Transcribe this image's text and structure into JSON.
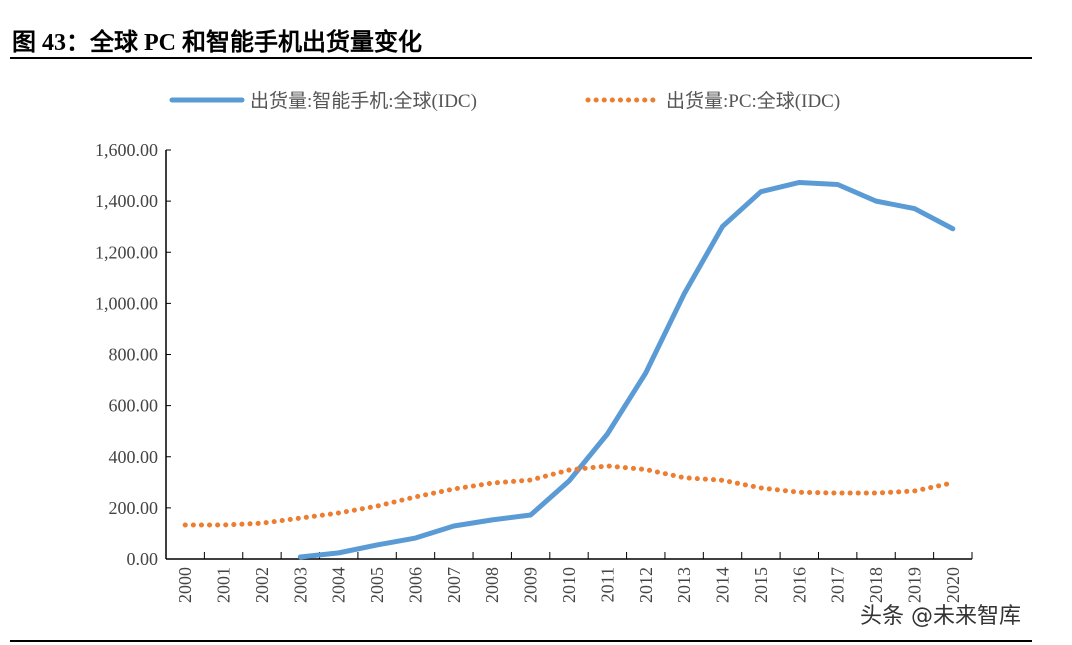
{
  "title": "图 43：全球 PC 和智能手机出货量变化",
  "watermark": "头条 @未来智库",
  "chart_data": {
    "type": "line",
    "title": "",
    "xlabel": "",
    "ylabel": "",
    "categories": [
      "2000",
      "2001",
      "2002",
      "2003",
      "2004",
      "2005",
      "2006",
      "2007",
      "2008",
      "2009",
      "2010",
      "2011",
      "2012",
      "2013",
      "2014",
      "2015",
      "2016",
      "2017",
      "2018",
      "2019",
      "2020"
    ],
    "ylim": [
      0,
      1600
    ],
    "yticks": [
      "0.00",
      "200.00",
      "400.00",
      "600.00",
      "800.00",
      "1,000.00",
      "1,200.00",
      "1,400.00",
      "1,600.00"
    ],
    "grid": false,
    "legend": "top",
    "series": [
      {
        "name": "出货量:智能手机:全球(IDC)",
        "color": "#5B9BD5",
        "style": "solid",
        "values": [
          null,
          null,
          null,
          8,
          24,
          55,
          82,
          129,
          153,
          172,
          305,
          489,
          728,
          1037,
          1301,
          1437,
          1473,
          1465,
          1400,
          1371,
          1292
        ]
      },
      {
        "name": "出货量:PC:全球(IDC)",
        "color": "#ED7D31",
        "style": "dotted",
        "values": [
          133,
          133,
          140,
          160,
          180,
          207,
          243,
          274,
          297,
          309,
          348,
          364,
          350,
          318,
          308,
          278,
          261,
          258,
          258,
          266,
          298
        ]
      }
    ]
  }
}
